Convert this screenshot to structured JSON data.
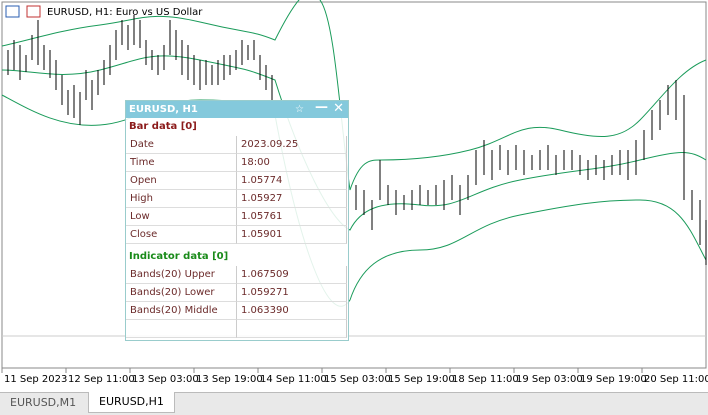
{
  "window": {
    "title": "EURUSD, H1:  Euro vs US Dollar"
  },
  "time_axis": {
    "labels": [
      "11 Sep 2023",
      "12 Sep 11:00",
      "13 Sep 03:00",
      "13 Sep 19:00",
      "14 Sep 11:00",
      "15 Sep 03:00",
      "15 Sep 19:00",
      "18 Sep 11:00",
      "19 Sep 03:00",
      "19 Sep 19:00",
      "20 Sep 11:00"
    ]
  },
  "panel": {
    "title": "EURUSD, H1",
    "sections": [
      {
        "heading": "Bar data [0]",
        "rows": [
          [
            "Date",
            "2023.09.25"
          ],
          [
            "Time",
            "18:00"
          ],
          [
            "Open",
            "1.05774"
          ],
          [
            "High",
            "1.05927"
          ],
          [
            "Low",
            "1.05761"
          ],
          [
            "Close",
            "1.05901"
          ]
        ]
      },
      {
        "heading": "Indicator data [0]",
        "rows": [
          [
            "Bands(20) Upper",
            "1.067509"
          ],
          [
            "Bands(20) Lower",
            "1.059271"
          ],
          [
            "Bands(20) Middle",
            "1.063390"
          ]
        ]
      }
    ]
  },
  "tabs": [
    "EURUSD,M1",
    "EURUSD,H1"
  ]
}
